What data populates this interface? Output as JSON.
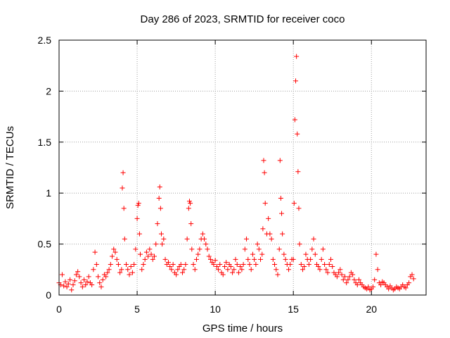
{
  "chart_data": {
    "type": "scatter",
    "title": "Day 286 of 2023, SRMTID for receiver coco",
    "xlabel": "GPS time / hours",
    "ylabel": "SRMTID / TECUs",
    "xlim": [
      0,
      23.5
    ],
    "ylim": [
      0,
      2.5
    ],
    "x_ticks": [
      0,
      5,
      10,
      15,
      20
    ],
    "x_tick_labels": [
      "0",
      "5",
      "10",
      "15",
      "20"
    ],
    "y_ticks": [
      0,
      0.5,
      1,
      1.5,
      2,
      2.5
    ],
    "y_tick_labels": [
      "0",
      "0.5",
      "1",
      "1.5",
      "2",
      "2.5"
    ],
    "grid": true,
    "marker": "+",
    "colors": {
      "series": "#ff0000",
      "axes": "#000000",
      "grid": "#a0a0a0"
    },
    "series": [
      {
        "name": "SRMTID",
        "x": [
          0.0,
          0.1,
          0.2,
          0.3,
          0.4,
          0.5,
          0.6,
          0.7,
          0.8,
          0.9,
          1.0,
          1.1,
          1.2,
          1.3,
          1.4,
          1.5,
          1.6,
          1.7,
          1.8,
          1.9,
          2.0,
          2.1,
          2.2,
          2.3,
          2.4,
          2.5,
          2.6,
          2.7,
          2.8,
          2.9,
          3.0,
          3.1,
          3.2,
          3.3,
          3.4,
          3.5,
          3.6,
          3.7,
          3.8,
          3.9,
          4.0,
          4.05,
          4.1,
          4.15,
          4.2,
          4.3,
          4.4,
          4.5,
          4.6,
          4.7,
          4.8,
          4.9,
          5.0,
          5.05,
          5.1,
          5.15,
          5.2,
          5.3,
          5.4,
          5.5,
          5.6,
          5.7,
          5.8,
          5.9,
          6.0,
          6.1,
          6.2,
          6.3,
          6.4,
          6.45,
          6.5,
          6.55,
          6.6,
          6.7,
          6.8,
          6.9,
          7.0,
          7.1,
          7.2,
          7.3,
          7.4,
          7.5,
          7.6,
          7.7,
          7.8,
          7.9,
          8.0,
          8.1,
          8.2,
          8.3,
          8.35,
          8.4,
          8.45,
          8.5,
          8.6,
          8.7,
          8.8,
          8.9,
          9.0,
          9.1,
          9.2,
          9.3,
          9.4,
          9.5,
          9.6,
          9.7,
          9.8,
          9.9,
          10.0,
          10.1,
          10.2,
          10.3,
          10.4,
          10.5,
          10.6,
          10.7,
          10.8,
          10.9,
          11.0,
          11.1,
          11.2,
          11.3,
          11.4,
          11.5,
          11.6,
          11.7,
          11.8,
          11.9,
          12.0,
          12.1,
          12.2,
          12.3,
          12.4,
          12.5,
          12.6,
          12.7,
          12.8,
          12.9,
          13.0,
          13.05,
          13.1,
          13.15,
          13.2,
          13.3,
          13.4,
          13.5,
          13.6,
          13.7,
          13.8,
          13.9,
          14.0,
          14.1,
          14.15,
          14.2,
          14.25,
          14.3,
          14.4,
          14.5,
          14.6,
          14.7,
          14.8,
          14.9,
          15.0,
          15.05,
          15.1,
          15.15,
          15.2,
          15.25,
          15.3,
          15.35,
          15.4,
          15.5,
          15.6,
          15.7,
          15.8,
          15.9,
          16.0,
          16.1,
          16.2,
          16.3,
          16.4,
          16.5,
          16.6,
          16.7,
          16.8,
          16.9,
          17.0,
          17.1,
          17.2,
          17.3,
          17.4,
          17.5,
          17.6,
          17.7,
          17.8,
          17.9,
          18.0,
          18.1,
          18.2,
          18.3,
          18.4,
          18.5,
          18.6,
          18.7,
          18.8,
          18.9,
          19.0,
          19.1,
          19.2,
          19.3,
          19.4,
          19.5,
          19.6,
          19.7,
          19.8,
          19.9,
          20.0,
          20.1,
          20.2,
          20.3,
          20.4,
          20.5,
          20.6,
          20.7,
          20.8,
          20.9,
          21.0,
          21.1,
          21.2,
          21.3,
          21.4,
          21.5,
          21.6,
          21.7,
          21.8,
          21.9,
          22.0,
          22.1,
          22.2,
          22.3,
          22.4,
          22.5,
          22.6,
          22.7
        ],
        "y": [
          0.12,
          0.1,
          0.2,
          0.09,
          0.13,
          0.08,
          0.11,
          0.15,
          0.05,
          0.1,
          0.14,
          0.2,
          0.23,
          0.18,
          0.12,
          0.08,
          0.15,
          0.1,
          0.13,
          0.18,
          0.12,
          0.1,
          0.25,
          0.42,
          0.3,
          0.18,
          0.12,
          0.08,
          0.15,
          0.2,
          0.18,
          0.22,
          0.25,
          0.3,
          0.38,
          0.45,
          0.42,
          0.35,
          0.3,
          0.22,
          0.25,
          1.05,
          1.2,
          0.85,
          0.55,
          0.3,
          0.25,
          0.2,
          0.28,
          0.22,
          0.3,
          0.45,
          0.75,
          0.88,
          0.9,
          0.6,
          0.4,
          0.25,
          0.3,
          0.35,
          0.42,
          0.38,
          0.45,
          0.4,
          0.35,
          0.38,
          0.5,
          0.7,
          0.95,
          1.06,
          0.85,
          0.6,
          0.5,
          0.55,
          0.35,
          0.3,
          0.32,
          0.28,
          0.25,
          0.3,
          0.22,
          0.2,
          0.25,
          0.28,
          0.3,
          0.22,
          0.25,
          0.3,
          0.55,
          0.85,
          0.92,
          0.9,
          0.7,
          0.45,
          0.3,
          0.25,
          0.35,
          0.4,
          0.45,
          0.55,
          0.6,
          0.55,
          0.5,
          0.45,
          0.38,
          0.35,
          0.32,
          0.3,
          0.34,
          0.28,
          0.25,
          0.3,
          0.22,
          0.2,
          0.28,
          0.32,
          0.25,
          0.3,
          0.28,
          0.22,
          0.25,
          0.35,
          0.3,
          0.22,
          0.28,
          0.25,
          0.3,
          0.45,
          0.55,
          0.35,
          0.3,
          0.25,
          0.4,
          0.35,
          0.3,
          0.5,
          0.45,
          0.35,
          0.4,
          0.65,
          1.32,
          1.2,
          0.9,
          0.6,
          0.75,
          0.6,
          0.55,
          0.35,
          0.3,
          0.25,
          0.2,
          0.45,
          1.32,
          0.95,
          0.8,
          0.6,
          0.4,
          0.35,
          0.3,
          0.25,
          0.3,
          0.35,
          0.35,
          0.9,
          1.72,
          2.1,
          2.34,
          1.58,
          1.21,
          0.85,
          0.5,
          0.3,
          0.25,
          0.28,
          0.4,
          0.35,
          0.3,
          0.35,
          0.45,
          0.55,
          0.4,
          0.3,
          0.28,
          0.25,
          0.35,
          0.45,
          0.3,
          0.25,
          0.22,
          0.3,
          0.35,
          0.28,
          0.22,
          0.2,
          0.18,
          0.22,
          0.25,
          0.2,
          0.15,
          0.18,
          0.12,
          0.15,
          0.18,
          0.22,
          0.2,
          0.15,
          0.12,
          0.1,
          0.15,
          0.12,
          0.1,
          0.08,
          0.07,
          0.06,
          0.08,
          0.05,
          0.06,
          0.08,
          0.15,
          0.4,
          0.25,
          0.12,
          0.1,
          0.13,
          0.12,
          0.1,
          0.08,
          0.06,
          0.09,
          0.07,
          0.05,
          0.06,
          0.08,
          0.07,
          0.06,
          0.08,
          0.1,
          0.08,
          0.07,
          0.1,
          0.12,
          0.18,
          0.2,
          0.16
        ]
      }
    ]
  }
}
